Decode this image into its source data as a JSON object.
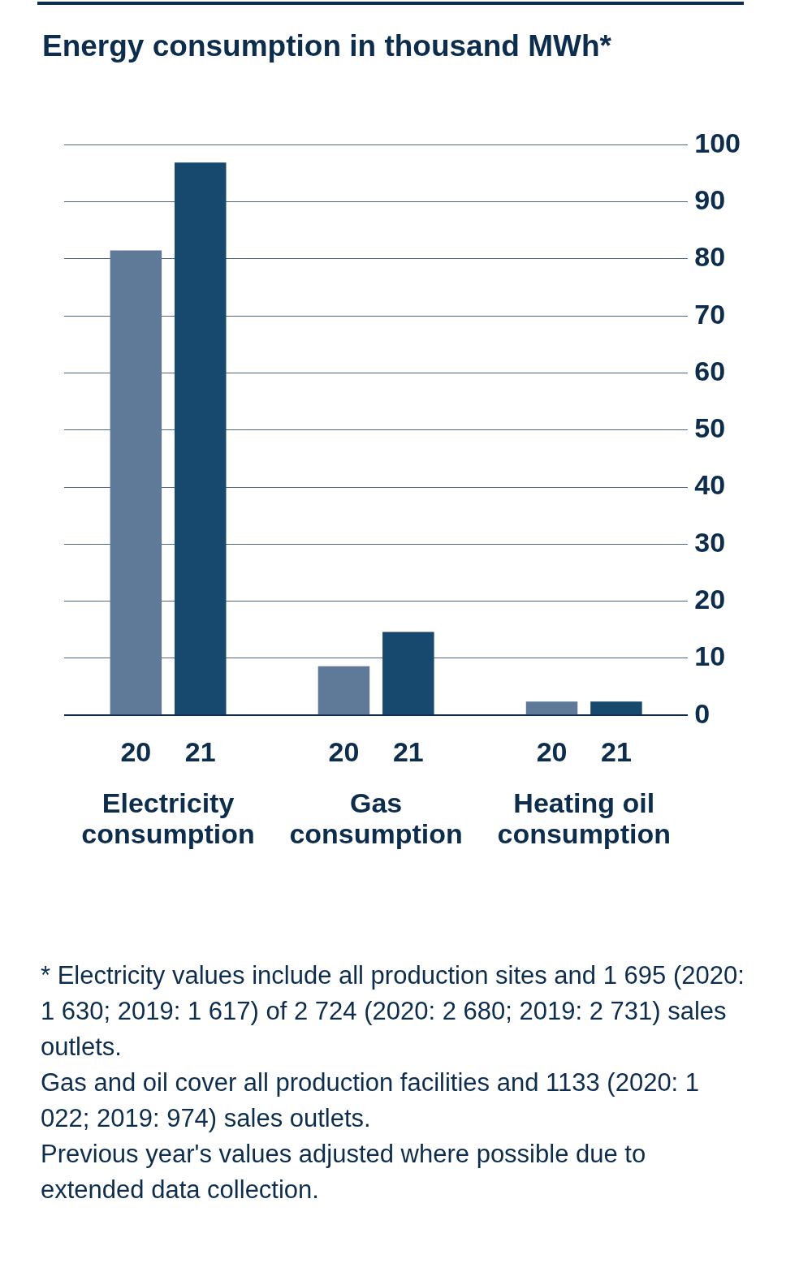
{
  "chart_data": {
    "type": "bar",
    "title": "Energy consumption in thousand MWh*",
    "categories": [
      "Electricity consumption",
      "Gas consumption",
      "Heating oil consumption"
    ],
    "series": [
      {
        "name": "20",
        "color": "#5f7a99",
        "values": [
          81.5,
          8.6,
          2.4
        ]
      },
      {
        "name": "21",
        "color": "#17496e",
        "values": [
          96.9,
          14.6,
          2.4
        ]
      }
    ],
    "ylim": [
      0,
      100
    ],
    "yticks": [
      0,
      10,
      20,
      30,
      40,
      50,
      60,
      70,
      80,
      90,
      100
    ],
    "grid": "y",
    "legend": false,
    "annotations": [
      "* Electricity values include all production sites and 1 695 (2020: 1 630; 2019: 1 617) of 2 724 (2020: 2 680; 2019: 2 731) sales outlets.",
      "Gas and oil cover all production facilities and 1133 (2020: 1 022; 2019: 974) sales outlets.",
      "Previous year's values adjusted where possible due to extended data collection."
    ]
  }
}
